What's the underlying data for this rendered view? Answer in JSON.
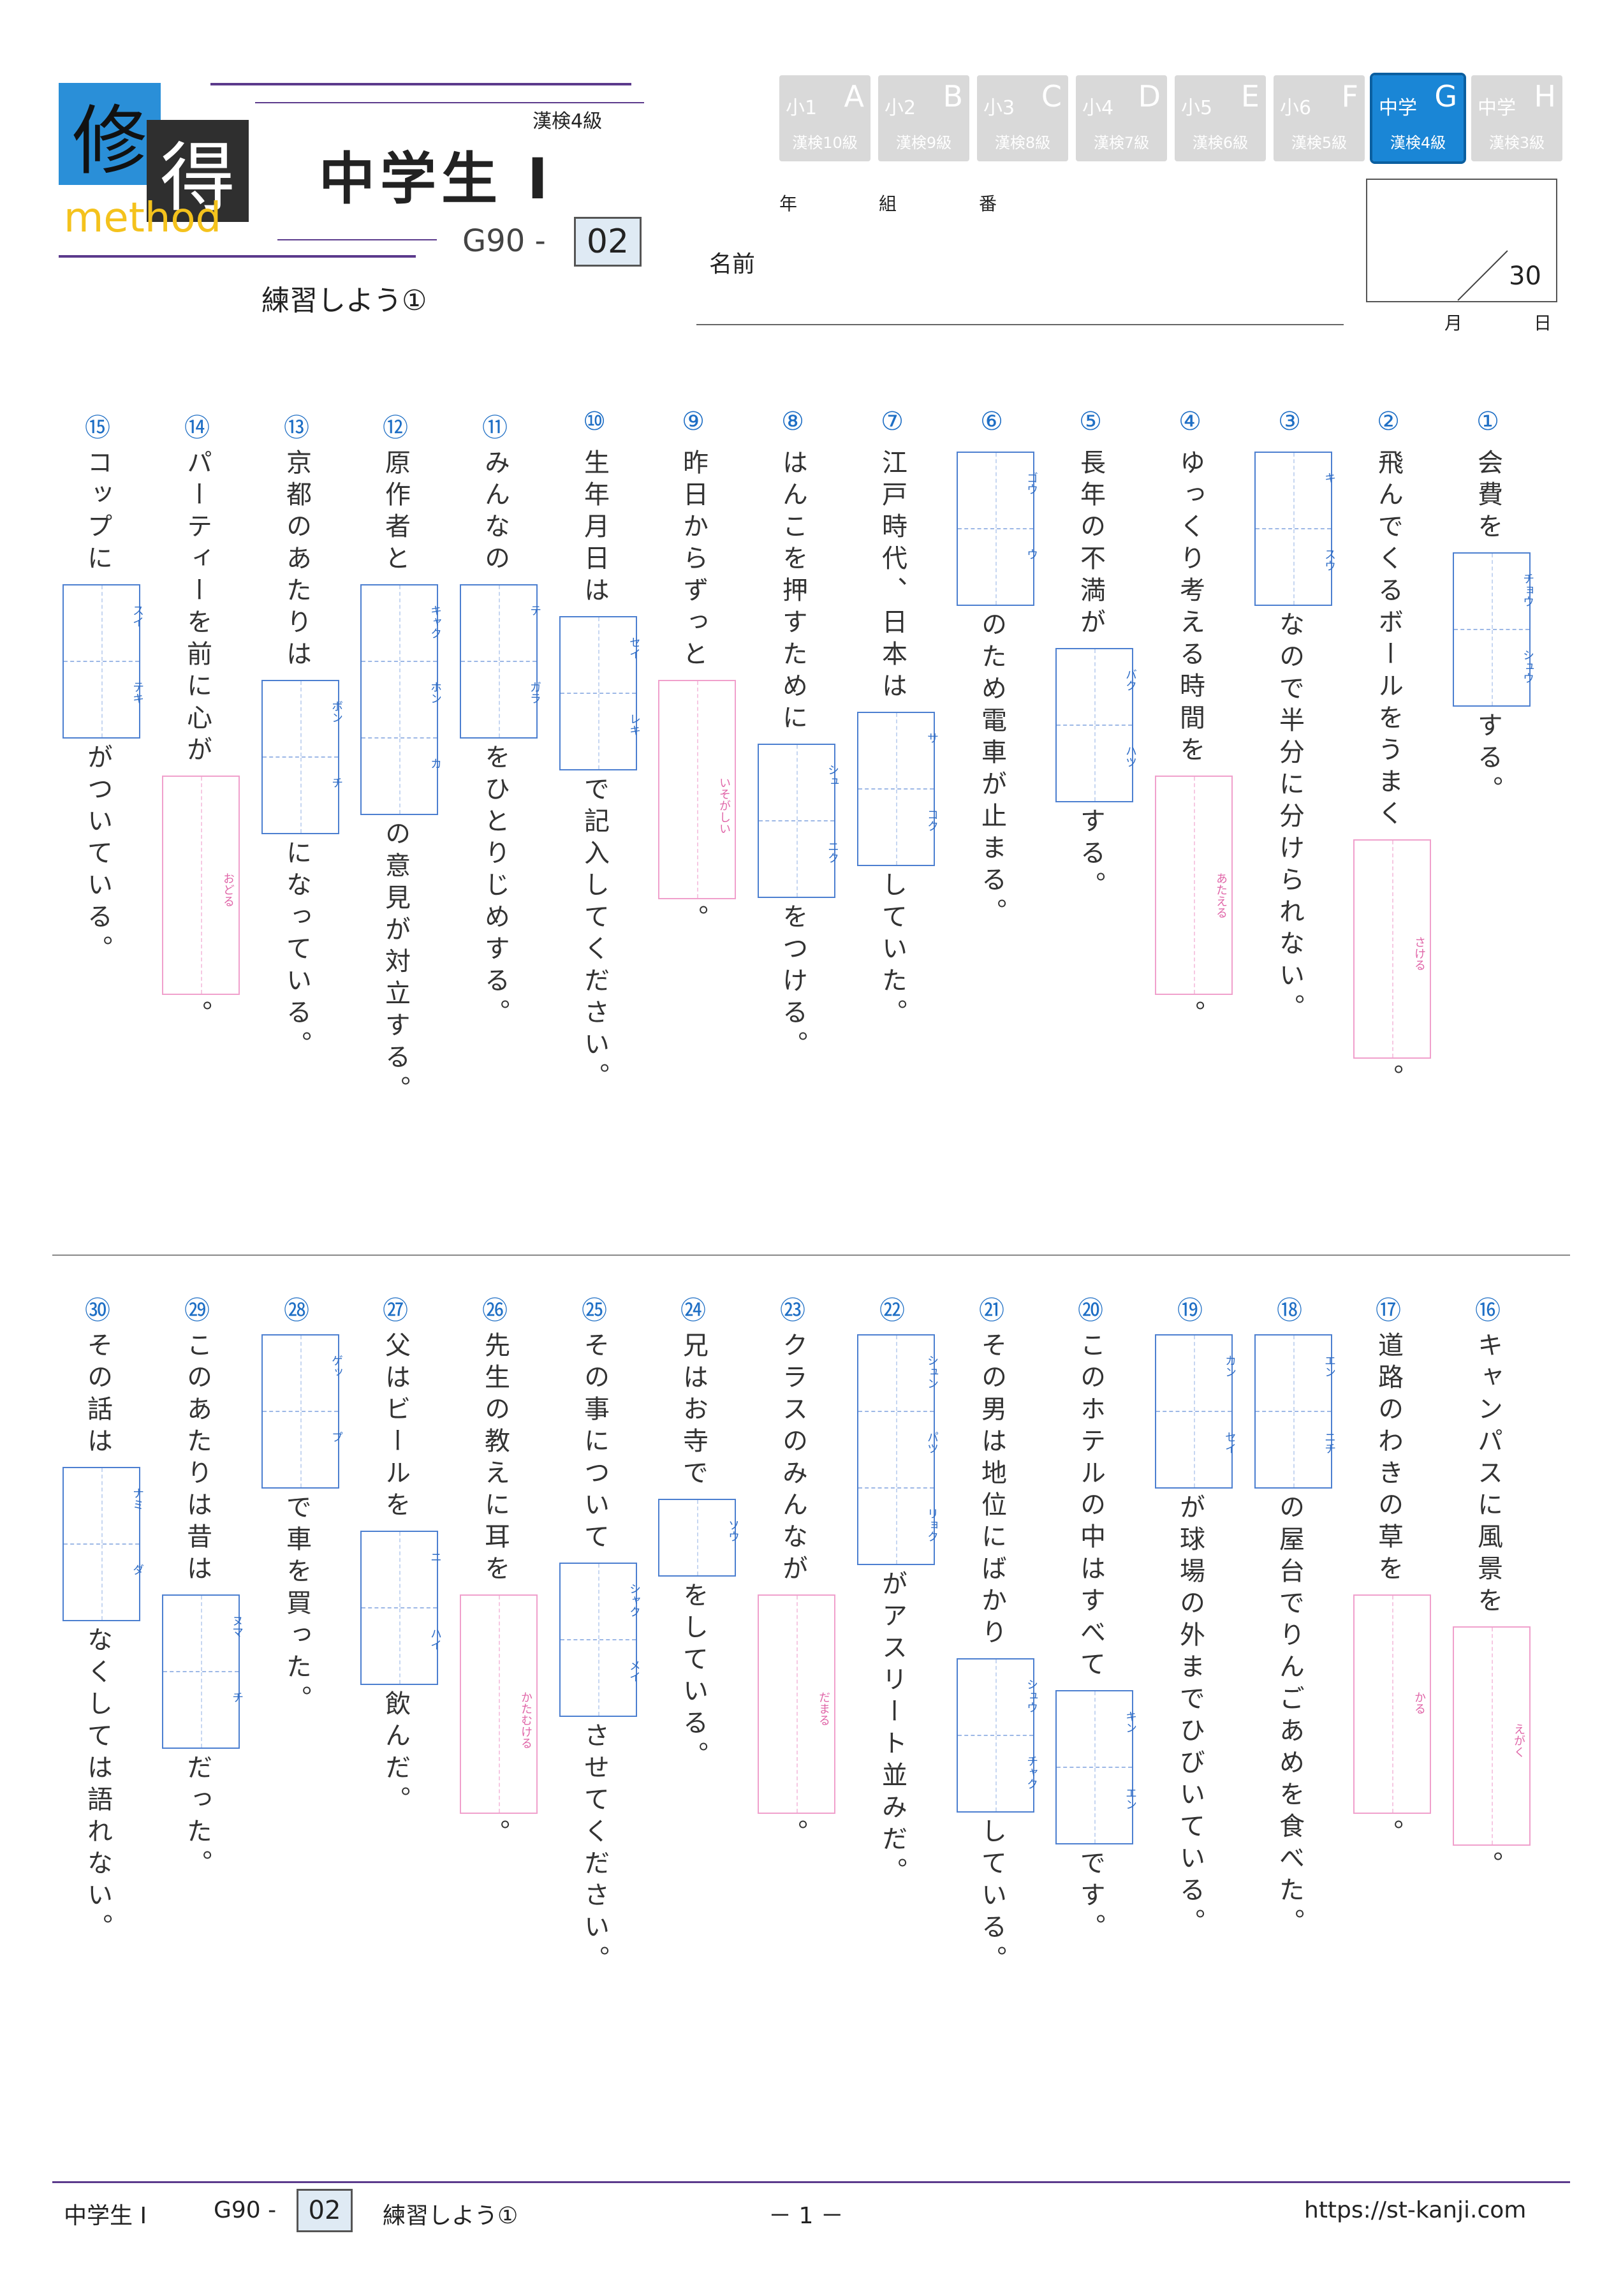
{
  "header": {
    "logo_char1": "修",
    "logo_char2": "得",
    "logo_sub": "method",
    "grade_tag": "漢検4級",
    "title": "中学生 Ⅰ",
    "code_prefix": "G90 -",
    "code_num": "02",
    "subtitle": "練習しよう①",
    "year_label": "年",
    "class_label": "組",
    "number_label": "番",
    "name_label": "名前",
    "score_total": "30",
    "month_label": "月",
    "day_label": "日"
  },
  "levels": [
    {
      "tier": "小1",
      "letter": "A",
      "kanken": "漢検10級",
      "active": false
    },
    {
      "tier": "小2",
      "letter": "B",
      "kanken": "漢検9級",
      "active": false
    },
    {
      "tier": "小3",
      "letter": "C",
      "kanken": "漢検8級",
      "active": false
    },
    {
      "tier": "小4",
      "letter": "D",
      "kanken": "漢検7級",
      "active": false
    },
    {
      "tier": "小5",
      "letter": "E",
      "kanken": "漢検6級",
      "active": false
    },
    {
      "tier": "小6",
      "letter": "F",
      "kanken": "漢検5級",
      "active": false
    },
    {
      "tier": "中学",
      "letter": "G",
      "kanken": "漢検4級",
      "active": true
    },
    {
      "tier": "中学",
      "letter": "H",
      "kanken": "漢検3級",
      "active": false
    }
  ],
  "questions": [
    {
      "num": "①",
      "parts": [
        {
          "t": "会費を"
        },
        {
          "box": [
            "チョウ",
            "シュウ"
          ]
        },
        {
          "t": "する。"
        }
      ]
    },
    {
      "num": "②",
      "parts": [
        {
          "t": "飛んでくるボールをうまく"
        },
        {
          "pink": "さける"
        },
        {
          "t": "。"
        }
      ]
    },
    {
      "num": "③",
      "parts": [
        {
          "box": [
            "キ",
            "スウ"
          ]
        },
        {
          "t": "なので半分に分けられない。"
        }
      ]
    },
    {
      "num": "④",
      "parts": [
        {
          "t": "ゆっくり考える時間を"
        },
        {
          "pink": "あたえる"
        },
        {
          "t": "。"
        }
      ]
    },
    {
      "num": "⑤",
      "parts": [
        {
          "t": "長年の不満が"
        },
        {
          "box": [
            "バク",
            "ハツ"
          ]
        },
        {
          "t": "する。"
        }
      ]
    },
    {
      "num": "⑥",
      "parts": [
        {
          "box": [
            "ゴウ",
            "ウ"
          ]
        },
        {
          "t": "のため電車が止まる。"
        }
      ]
    },
    {
      "num": "⑦",
      "parts": [
        {
          "t": "江戸時代、日本は"
        },
        {
          "box": [
            "サ",
            "コク"
          ]
        },
        {
          "t": "していた。"
        }
      ]
    },
    {
      "num": "⑧",
      "parts": [
        {
          "t": "はんこを押すために"
        },
        {
          "box": [
            "シュ",
            "ニク"
          ]
        },
        {
          "t": "をつける。"
        }
      ]
    },
    {
      "num": "⑨",
      "parts": [
        {
          "t": "昨日からずっと"
        },
        {
          "pink": "いそがしい"
        },
        {
          "t": "。"
        }
      ]
    },
    {
      "num": "⑩",
      "parts": [
        {
          "t": "生年月日は"
        },
        {
          "box": [
            "セイ",
            "レキ"
          ]
        },
        {
          "t": "で記入してください。"
        }
      ]
    },
    {
      "num": "⑪",
      "parts": [
        {
          "t": "みんなの"
        },
        {
          "box": [
            "テ",
            "ガラ"
          ]
        },
        {
          "t": "をひとりじめする。"
        }
      ]
    },
    {
      "num": "⑫",
      "parts": [
        {
          "t": "原作者と"
        },
        {
          "box": [
            "キャク",
            "ホン",
            "カ"
          ]
        },
        {
          "t": "の意見が対立する。"
        }
      ]
    },
    {
      "num": "⑬",
      "parts": [
        {
          "t": "京都のあたりは"
        },
        {
          "box": [
            "ボン",
            "チ"
          ]
        },
        {
          "t": "になっている。"
        }
      ]
    },
    {
      "num": "⑭",
      "parts": [
        {
          "t": "パーティーを前に心が"
        },
        {
          "pink": "おどる"
        },
        {
          "t": "。"
        }
      ]
    },
    {
      "num": "⑮",
      "parts": [
        {
          "t": "コップに"
        },
        {
          "box": [
            "スイ",
            "テキ"
          ]
        },
        {
          "t": "がついている。"
        }
      ]
    },
    {
      "num": "⑯",
      "parts": [
        {
          "t": "キャンパスに風景を"
        },
        {
          "pink": "えがく"
        },
        {
          "t": "。"
        }
      ]
    },
    {
      "num": "⑰",
      "parts": [
        {
          "t": "道路のわきの草を"
        },
        {
          "pink": "かる"
        },
        {
          "t": "。"
        }
      ]
    },
    {
      "num": "⑱",
      "parts": [
        {
          "box": [
            "エン",
            "ニチ"
          ]
        },
        {
          "t": "の屋台でりんごあめを食べた。"
        }
      ]
    },
    {
      "num": "⑲",
      "parts": [
        {
          "box": [
            "カン",
            "セイ"
          ]
        },
        {
          "t": "が球場の外までひびいている。"
        }
      ]
    },
    {
      "num": "⑳",
      "parts": [
        {
          "t": "このホテルの中はすべて"
        },
        {
          "box": [
            "キン",
            "エン"
          ]
        },
        {
          "t": "です。"
        }
      ]
    },
    {
      "num": "㉑",
      "parts": [
        {
          "t": "その男は地位にばかり"
        },
        {
          "box": [
            "シュウ",
            "チャク"
          ]
        },
        {
          "t": "している。"
        }
      ]
    },
    {
      "num": "㉒",
      "parts": [
        {
          "box": [
            "シュン",
            "パツ",
            "リョク"
          ]
        },
        {
          "t": "がアスリート並みだ。"
        }
      ]
    },
    {
      "num": "㉓",
      "parts": [
        {
          "t": "クラスのみんなが"
        },
        {
          "pink": "だまる"
        },
        {
          "t": "。"
        }
      ]
    },
    {
      "num": "㉔",
      "parts": [
        {
          "t": "兄はお寺で"
        },
        {
          "box": [
            "ソウ"
          ]
        },
        {
          "t": "をしている。"
        }
      ]
    },
    {
      "num": "㉕",
      "parts": [
        {
          "t": "その事について"
        },
        {
          "box": [
            "シャク",
            "メイ"
          ]
        },
        {
          "t": "させてください。"
        }
      ]
    },
    {
      "num": "㉖",
      "parts": [
        {
          "t": "先生の教えに耳を"
        },
        {
          "pink": "かたむける"
        },
        {
          "t": "。"
        }
      ]
    },
    {
      "num": "㉗",
      "parts": [
        {
          "t": "父はビールを"
        },
        {
          "box": [
            "ニ",
            "ハイ"
          ]
        },
        {
          "t": "飲んだ。"
        }
      ]
    },
    {
      "num": "㉘",
      "parts": [
        {
          "box": [
            "ゲッ",
            "プ"
          ]
        },
        {
          "t": "で車を買った。"
        }
      ]
    },
    {
      "num": "㉙",
      "parts": [
        {
          "t": "このあたりは昔は"
        },
        {
          "box": [
            "ヌマ",
            "チ"
          ]
        },
        {
          "t": "だった。"
        }
      ]
    },
    {
      "num": "㉚",
      "parts": [
        {
          "t": "その話は"
        },
        {
          "box": [
            "ナミ",
            "ダ"
          ]
        },
        {
          "t": "なくしては語れない。"
        }
      ]
    }
  ],
  "footer": {
    "title": "中学生 Ⅰ",
    "code_prefix": "G90 -",
    "code_num": "02",
    "subtitle": "練習しよう①",
    "page": "－ 1 －",
    "url": "https://st-kanji.com"
  }
}
